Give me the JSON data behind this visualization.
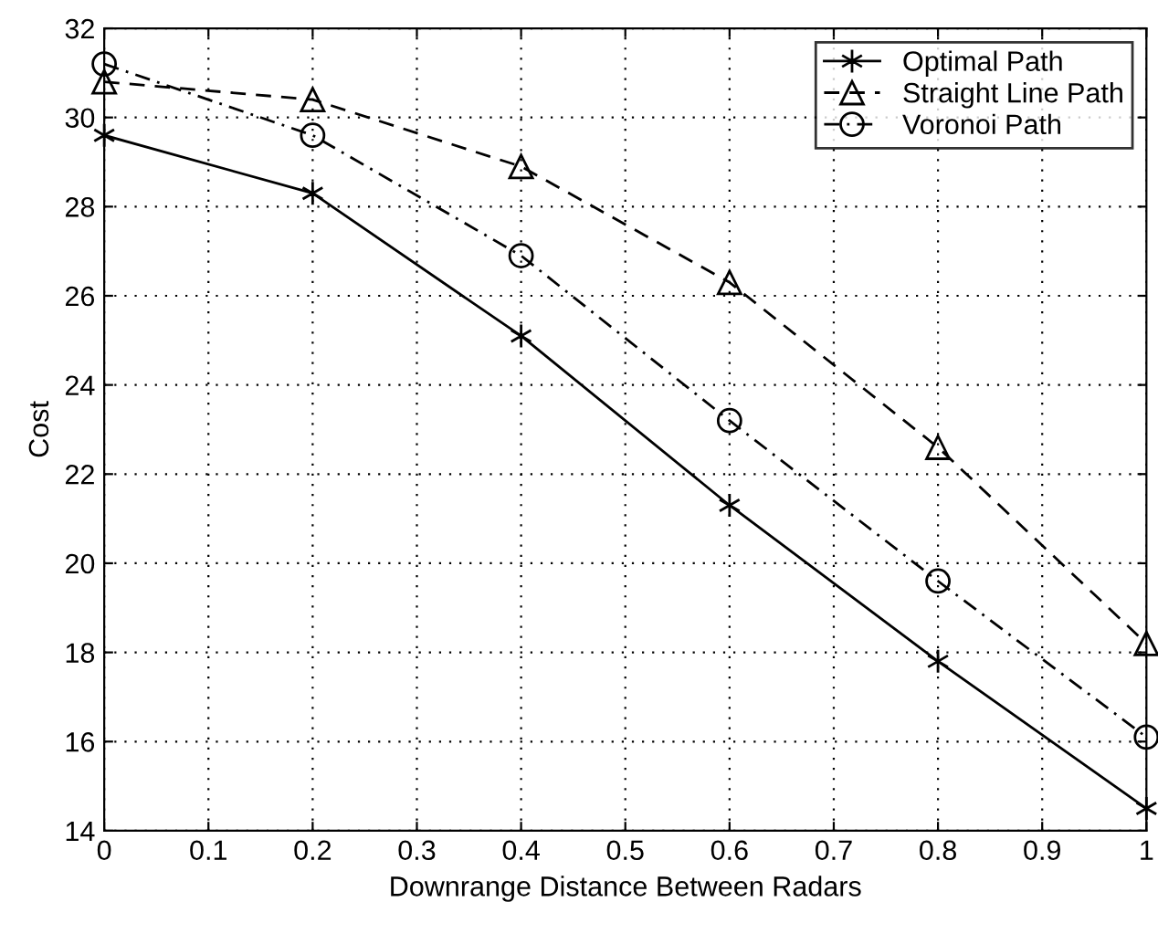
{
  "chart_data": {
    "type": "line",
    "xlabel": "Downrange Distance Between Radars",
    "ylabel": "Cost",
    "x": [
      0,
      0.2,
      0.4,
      0.6,
      0.8,
      1
    ],
    "series": [
      {
        "name": "Optimal Path",
        "color": "#000000",
        "marker": "cross",
        "line_style": "solid",
        "values": [
          29.6,
          28.3,
          25.1,
          21.3,
          17.8,
          14.5
        ]
      },
      {
        "name": "Straight Line Path",
        "color": "#000000",
        "marker": "triangle",
        "line_style": "dashed",
        "values": [
          30.8,
          30.4,
          28.9,
          26.3,
          22.6,
          18.2
        ]
      },
      {
        "name": "Voronoi Path",
        "color": "#000000",
        "marker": "circle",
        "line_style": "dashdot",
        "values": [
          31.2,
          29.6,
          26.9,
          23.2,
          19.6,
          16.1
        ]
      }
    ],
    "xlim": [
      0,
      1
    ],
    "xticks": [
      0,
      0.1,
      0.2,
      0.3,
      0.4,
      0.5,
      0.6,
      0.7,
      0.8,
      0.9,
      1
    ],
    "ylim": [
      14,
      32
    ],
    "yticks": [
      14,
      16,
      18,
      20,
      22,
      24,
      26,
      28,
      30,
      32
    ],
    "grid": true,
    "legend": "top right"
  }
}
